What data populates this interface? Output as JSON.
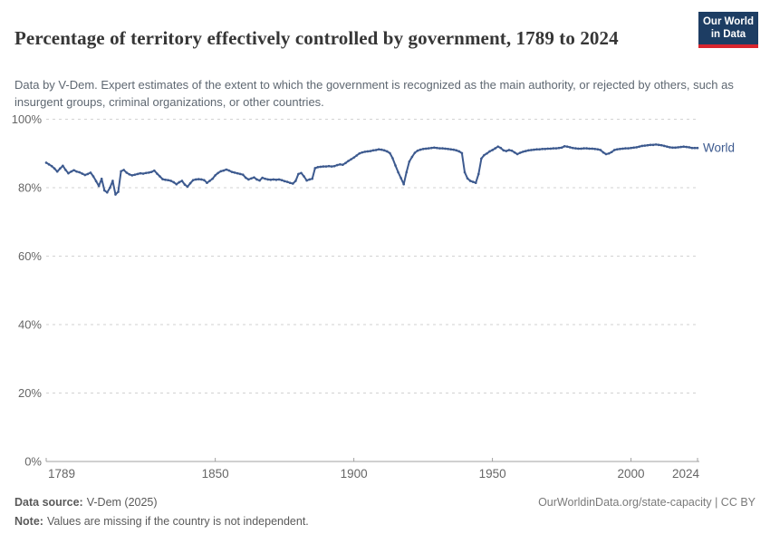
{
  "header": {
    "title": "Percentage of territory effectively controlled by government, 1789 to 2024",
    "subtitle": "Data by V-Dem. Expert estimates of the extent to which the government is recognized as the main authority, or rejected by others, such as insurgent groups, criminal organizations, or other countries."
  },
  "logo": {
    "line1": "Our World",
    "line2": "in Data",
    "bg_color": "#1d3d63",
    "bar_color": "#d8252e",
    "text_color": "#ffffff"
  },
  "footer": {
    "data_source_label": "Data source:",
    "data_source_value": "V-Dem (2025)",
    "note_label": "Note:",
    "note_value": "Values are missing if the country is not independent.",
    "link_text": "OurWorldinData.org/state-capacity | CC BY"
  },
  "chart_data": {
    "type": "line",
    "title": "Percentage of territory effectively controlled by government, 1789 to 2024",
    "xlabel": "",
    "ylabel": "",
    "xlim": [
      1789,
      2024
    ],
    "ylim": [
      0,
      100
    ],
    "grid": "horizontal-dashed",
    "legend_position": "right-of-line-end",
    "line_color": "#3d5a8f",
    "axis_color": "#a1a1a1",
    "grid_color": "#d2d2d2",
    "tick_label_color": "#666666",
    "yticks": [
      {
        "value": 0,
        "label": "0%"
      },
      {
        "value": 20,
        "label": "20%"
      },
      {
        "value": 40,
        "label": "40%"
      },
      {
        "value": 60,
        "label": "60%"
      },
      {
        "value": 80,
        "label": "80%"
      },
      {
        "value": 100,
        "label": "100%"
      }
    ],
    "xticks": [
      {
        "year": 1789,
        "label": "1789"
      },
      {
        "year": 1850,
        "label": "1850"
      },
      {
        "year": 1900,
        "label": "1900"
      },
      {
        "year": 1950,
        "label": "1950"
      },
      {
        "year": 2000,
        "label": "2000"
      },
      {
        "year": 2024,
        "label": "2024"
      }
    ],
    "series": [
      {
        "name": "World",
        "start_year": 1789,
        "end_year": 2024,
        "values": [
          87.3,
          86.8,
          86.3,
          85.6,
          84.7,
          85.6,
          86.4,
          85.2,
          84.2,
          84.7,
          85.1,
          84.7,
          84.5,
          84.1,
          83.7,
          84.0,
          84.4,
          83.3,
          81.9,
          80.5,
          82.6,
          79.2,
          78.6,
          80.0,
          82.0,
          78.0,
          78.8,
          84.8,
          85.2,
          84.4,
          83.9,
          83.6,
          83.8,
          84.0,
          84.2,
          84.1,
          84.3,
          84.4,
          84.6,
          85.0,
          84.1,
          83.3,
          82.5,
          82.3,
          82.2,
          82.0,
          81.6,
          81.0,
          81.6,
          82.0,
          80.9,
          80.3,
          81.3,
          82.2,
          82.4,
          82.5,
          82.4,
          82.2,
          81.4,
          82.0,
          82.6,
          83.6,
          84.3,
          84.8,
          85.0,
          85.3,
          85.0,
          84.6,
          84.4,
          84.2,
          84.0,
          83.8,
          82.9,
          82.4,
          82.7,
          83.0,
          82.4,
          82.1,
          82.9,
          82.6,
          82.4,
          82.3,
          82.4,
          82.3,
          82.4,
          82.2,
          81.9,
          81.7,
          81.4,
          81.2,
          82.0,
          84.0,
          84.3,
          83.3,
          82.1,
          82.4,
          82.6,
          85.7,
          86.0,
          86.1,
          86.2,
          86.2,
          86.3,
          86.2,
          86.3,
          86.6,
          86.8,
          86.7,
          87.2,
          87.8,
          88.3,
          88.8,
          89.4,
          90.0,
          90.3,
          90.5,
          90.6,
          90.7,
          90.9,
          91.0,
          91.2,
          91.1,
          90.9,
          90.6,
          90.1,
          88.6,
          86.5,
          84.5,
          82.8,
          81.0,
          84.5,
          87.6,
          89.0,
          90.2,
          90.8,
          91.1,
          91.3,
          91.4,
          91.5,
          91.6,
          91.7,
          91.6,
          91.5,
          91.5,
          91.4,
          91.3,
          91.2,
          91.1,
          90.9,
          90.6,
          90.1,
          84.5,
          82.7,
          82.0,
          81.7,
          81.4,
          84.0,
          88.5,
          89.5,
          90.0,
          90.6,
          91.0,
          91.5,
          92.0,
          91.6,
          90.9,
          90.7,
          91.0,
          90.8,
          90.3,
          89.8,
          90.2,
          90.5,
          90.7,
          90.9,
          91.0,
          91.1,
          91.2,
          91.2,
          91.3,
          91.3,
          91.4,
          91.4,
          91.5,
          91.5,
          91.6,
          91.7,
          92.1,
          92.0,
          91.8,
          91.6,
          91.5,
          91.4,
          91.4,
          91.5,
          91.5,
          91.4,
          91.4,
          91.3,
          91.2,
          91.0,
          90.3,
          89.8,
          90.0,
          90.4,
          91.0,
          91.2,
          91.3,
          91.4,
          91.5,
          91.5,
          91.6,
          91.7,
          91.8,
          92.0,
          92.2,
          92.3,
          92.4,
          92.5,
          92.5,
          92.6,
          92.5,
          92.4,
          92.2,
          92.0,
          91.8,
          91.7,
          91.7,
          91.8,
          91.9,
          92.0,
          91.9,
          91.8,
          91.6,
          91.6,
          91.6
        ]
      }
    ]
  }
}
